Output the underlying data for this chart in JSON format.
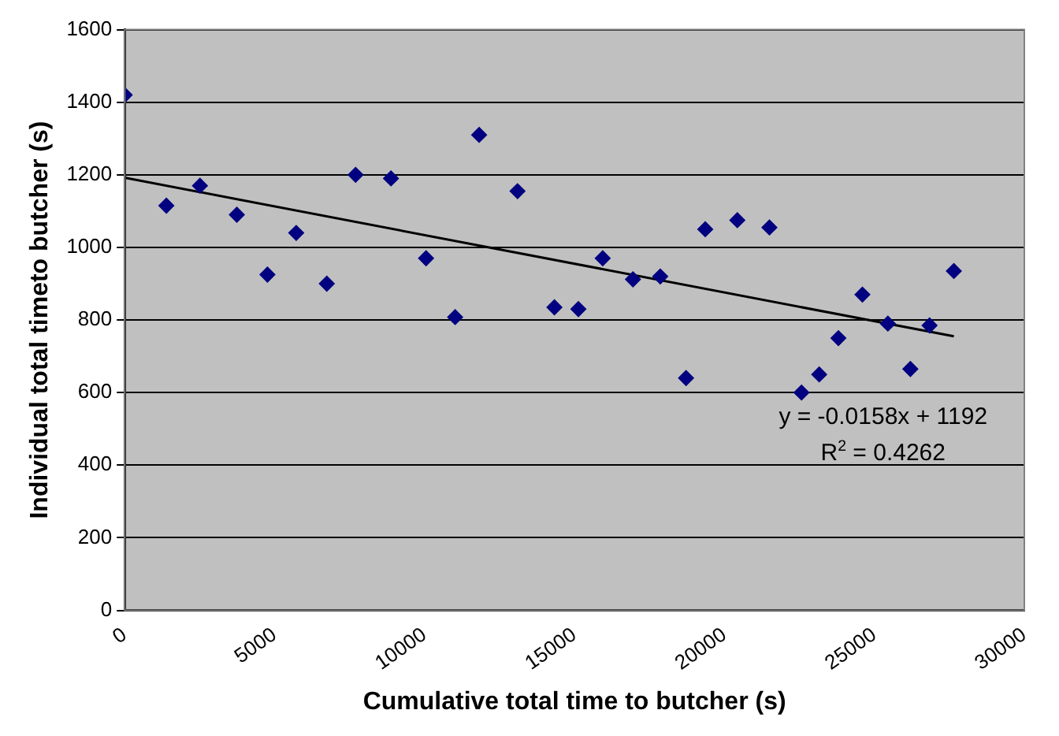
{
  "chart_data": {
    "type": "scatter",
    "xlabel": "Cumulative total time to butcher (s)",
    "ylabel": "Individual total timeto butcher (s)",
    "xlim": [
      0,
      30000
    ],
    "xticks": [
      0,
      5000,
      10000,
      15000,
      20000,
      25000,
      30000
    ],
    "ylim": [
      0,
      1600
    ],
    "yticks": [
      0,
      200,
      400,
      600,
      800,
      1000,
      1200,
      1400,
      1600
    ],
    "grid": "y",
    "marker": "diamond",
    "legend": false,
    "series": [
      {
        "color": "#000080",
        "x": [
          0,
          1390,
          2510,
          3740,
          4760,
          5720,
          6740,
          7700,
          8880,
          10050,
          11020,
          11820,
          13100,
          14330,
          15130,
          15940,
          16950,
          17860,
          18720,
          19360,
          20430,
          21500,
          22570,
          23160,
          23800,
          24600,
          25450,
          26200,
          26840,
          27650
        ],
        "values": [
          1420,
          1115,
          1170,
          1090,
          925,
          1040,
          900,
          1200,
          1190,
          970,
          808,
          1310,
          1155,
          835,
          830,
          970,
          912,
          920,
          640,
          1050,
          1075,
          1055,
          600,
          650,
          750,
          870,
          790,
          665,
          785,
          935
        ]
      },
      {
        "type": "line",
        "color": "#000000",
        "x": [
          0,
          27650
        ],
        "values": [
          1192,
          755
        ],
        "marker": "none",
        "line_style": "solid"
      }
    ],
    "annotations": [
      "y = -0.0158x + 1192",
      "R$^{2}$ = 0.4262"
    ]
  }
}
